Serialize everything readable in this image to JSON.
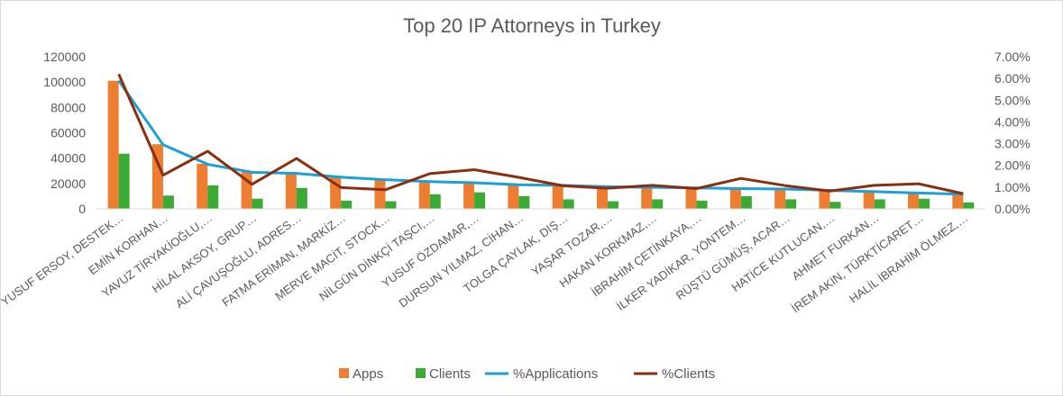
{
  "chart_data": {
    "type": "bar",
    "title": "Top 20 IP Attorneys in Turkey",
    "categories": [
      "YUSUF ERSOY, DESTEK…",
      "EMİN KORHAN…",
      "YAVUZ TİRYAKİOĞLU,…",
      "HİLAL AKSOY, GRUP…",
      "ALİ ÇAVUŞOĞLU, ADRES…",
      "FATMA ERİMAN, MARKİZ…",
      "MERVE MACİT, STOCK…",
      "NİLGÜN DİNKÇİ TAŞCI,…",
      "YUSUF ÖZDAMAR,…",
      "DURSUN YILMAZ, CİHAN…",
      "TOLGA ÇAYLAK, DIŞ…",
      "YAŞAR TOZAR,…",
      "HAKAN KORKMAZ,…",
      "İBRAHİM ÇETİNKAYA,…",
      "İLKER YADİKAR, YÖNTEM…",
      "RÜŞTÜ GÜMÜŞ, ACAR…",
      "HATİCE KUTLUCAN,…",
      "AHMET FURKAN…",
      "İREM AKIN, TÜRKTİCARET…",
      "HALİL İBRAHİM ÖLMEZ,…"
    ],
    "series": [
      {
        "name": "Apps",
        "kind": "bar",
        "axis": "left",
        "color": "#ED7D31",
        "values": [
          101000,
          51000,
          35500,
          29000,
          28000,
          25000,
          23000,
          21500,
          20500,
          19000,
          18500,
          17500,
          17000,
          16500,
          16000,
          15500,
          14500,
          13500,
          12500,
          11500
        ]
      },
      {
        "name": "Clients",
        "kind": "bar",
        "axis": "left",
        "color": "#3AAA35",
        "values": [
          43500,
          10500,
          18500,
          8000,
          16500,
          6500,
          6000,
          11500,
          13000,
          10000,
          7500,
          6000,
          7500,
          6500,
          10000,
          7500,
          5500,
          7500,
          8000,
          5000
        ]
      },
      {
        "name": "%Applications",
        "kind": "line",
        "axis": "right",
        "color": "#1BA1D6",
        "values": [
          0.059,
          0.0295,
          0.0205,
          0.0168,
          0.0163,
          0.0146,
          0.0134,
          0.0125,
          0.012,
          0.0111,
          0.0108,
          0.0102,
          0.0099,
          0.0096,
          0.0093,
          0.0091,
          0.0085,
          0.0079,
          0.0073,
          0.0067
        ]
      },
      {
        "name": "%Clients",
        "kind": "line",
        "axis": "right",
        "color": "#8B2E10",
        "values": [
          0.062,
          0.0155,
          0.0265,
          0.0113,
          0.0232,
          0.0098,
          0.0088,
          0.0162,
          0.018,
          0.0145,
          0.0106,
          0.0095,
          0.0108,
          0.0093,
          0.014,
          0.0107,
          0.0082,
          0.0108,
          0.0115,
          0.007
        ]
      }
    ],
    "y_left": {
      "min": 0,
      "max": 120000,
      "ticks": [
        "0",
        "20000",
        "40000",
        "60000",
        "80000",
        "100000",
        "120000"
      ]
    },
    "y_right": {
      "min": 0,
      "max": 0.07,
      "ticks": [
        "0.00%",
        "1.00%",
        "2.00%",
        "3.00%",
        "4.00%",
        "5.00%",
        "6.00%",
        "7.00%"
      ]
    },
    "grid": false,
    "legend": "bottom"
  }
}
